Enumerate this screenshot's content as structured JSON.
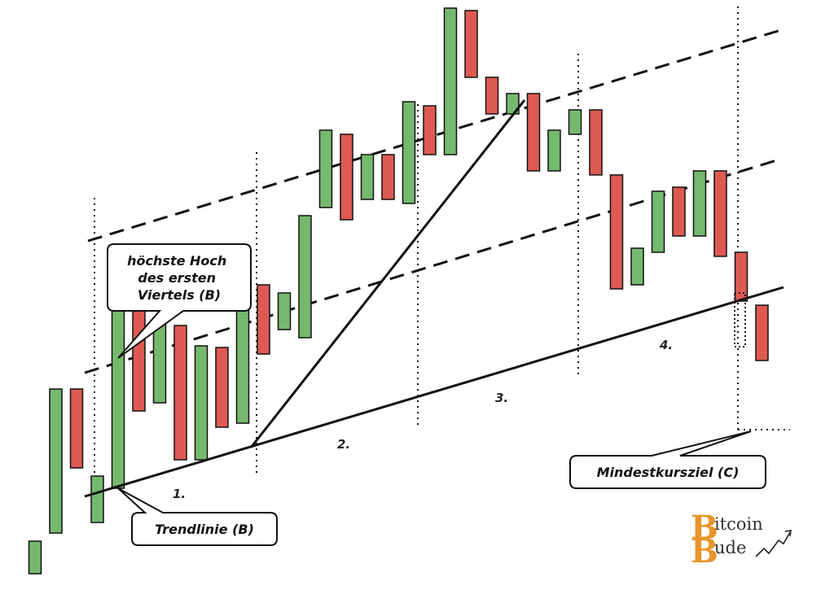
{
  "colors": {
    "bullish": "#75b96f",
    "bearish": "#dd5a52",
    "line": "#111111",
    "logo": "#e8952a"
  },
  "candles": [
    {
      "x": 1,
      "open": 30,
      "close": 70,
      "color": "bullish"
    },
    {
      "x": 2,
      "open": 80,
      "close": 257,
      "color": "bullish"
    },
    {
      "x": 3,
      "open": 257,
      "close": 160,
      "color": "bearish"
    },
    {
      "x": 4,
      "open": 93,
      "close": 150,
      "color": "bullish"
    },
    {
      "x": 5,
      "open": 135,
      "close": 367,
      "color": "bullish"
    },
    {
      "x": 6,
      "open": 360,
      "close": 230,
      "color": "bearish"
    },
    {
      "x": 7,
      "open": 240,
      "close": 340,
      "color": "bullish"
    },
    {
      "x": 8,
      "open": 335,
      "close": 170,
      "color": "bearish"
    },
    {
      "x": 9,
      "open": 170,
      "close": 310,
      "color": "bullish"
    },
    {
      "x": 10,
      "open": 308,
      "close": 210,
      "color": "bearish"
    },
    {
      "x": 11,
      "open": 215,
      "close": 382,
      "color": "bullish"
    },
    {
      "x": 12,
      "open": 385,
      "close": 300,
      "color": "bearish"
    },
    {
      "x": 13,
      "open": 330,
      "close": 375,
      "color": "bullish"
    },
    {
      "x": 14,
      "open": 320,
      "close": 470,
      "color": "bullish"
    },
    {
      "x": 15,
      "open": 480,
      "close": 575,
      "color": "bullish"
    },
    {
      "x": 16,
      "open": 570,
      "close": 465,
      "color": "bearish"
    },
    {
      "x": 17,
      "open": 490,
      "close": 545,
      "color": "bullish"
    },
    {
      "x": 18,
      "open": 545,
      "close": 490,
      "color": "bearish"
    },
    {
      "x": 19,
      "open": 485,
      "close": 610,
      "color": "bullish"
    },
    {
      "x": 20,
      "open": 605,
      "close": 545,
      "color": "bearish"
    },
    {
      "x": 21,
      "open": 545,
      "close": 725,
      "color": "bullish"
    },
    {
      "x": 22,
      "open": 722,
      "close": 640,
      "color": "bearish"
    },
    {
      "x": 23,
      "open": 640,
      "close": 595,
      "color": "bearish"
    },
    {
      "x": 24,
      "open": 595,
      "close": 620,
      "color": "bullish"
    },
    {
      "x": 25,
      "open": 620,
      "close": 525,
      "color": "bearish"
    },
    {
      "x": 26,
      "open": 525,
      "close": 575,
      "color": "bullish"
    },
    {
      "x": 27,
      "open": 570,
      "close": 600,
      "color": "bullish"
    },
    {
      "x": 28,
      "open": 600,
      "close": 520,
      "color": "bearish"
    },
    {
      "x": 29,
      "open": 520,
      "close": 380,
      "color": "bearish"
    },
    {
      "x": 30,
      "open": 385,
      "close": 430,
      "color": "bullish"
    },
    {
      "x": 31,
      "open": 425,
      "close": 500,
      "color": "bullish"
    },
    {
      "x": 32,
      "open": 505,
      "close": 445,
      "color": "bearish"
    },
    {
      "x": 33,
      "open": 445,
      "close": 525,
      "color": "bullish"
    },
    {
      "x": 34,
      "open": 525,
      "close": 420,
      "color": "bearish"
    },
    {
      "x": 35,
      "open": 425,
      "close": 365,
      "color": "bearish"
    },
    {
      "x": 36,
      "open": 360,
      "close": 292,
      "color": "bearish"
    }
  ],
  "labels": {
    "bubble_high": [
      "höchste Hoch",
      "des ersten",
      "Viertels (B)"
    ],
    "bubble_trend": "Trendlinie (B)",
    "bubble_target": "Mindestkursziel (C)",
    "quarters": [
      "1.",
      "2.",
      "3.",
      "4."
    ]
  },
  "logo": {
    "letter_b1": "B",
    "text1": "itcoin",
    "letter_b2": "B",
    "text2": "ude"
  }
}
